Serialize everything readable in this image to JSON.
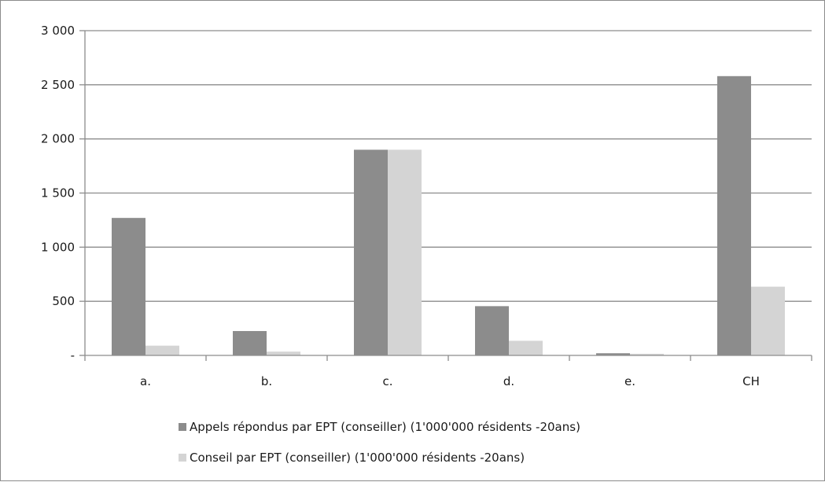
{
  "chart_data": {
    "type": "bar",
    "categories": [
      "a.",
      "b.",
      "c.",
      "d.",
      "e.",
      "CH"
    ],
    "series": [
      {
        "name": "Appels répondus par EPT (conseiller) (1'000'000 résidents -20ans)",
        "color": "#8c8c8c",
        "values": [
          1270,
          225,
          1900,
          455,
          20,
          2580
        ]
      },
      {
        "name": "Conseil par EPT (conseiller) (1'000'000 résidents -20ans)",
        "color": "#d4d4d4",
        "values": [
          90,
          35,
          1900,
          135,
          15,
          635
        ]
      }
    ],
    "y_ticks": [
      {
        "value": 0,
        "label": "-"
      },
      {
        "value": 500,
        "label": "500"
      },
      {
        "value": 1000,
        "label": "1 000"
      },
      {
        "value": 1500,
        "label": "1 500"
      },
      {
        "value": 2000,
        "label": "2 000"
      },
      {
        "value": 2500,
        "label": "2 500"
      },
      {
        "value": 3000,
        "label": "3 000"
      }
    ],
    "ylim": [
      0,
      3000
    ],
    "grid": true,
    "legend_position": "bottom"
  }
}
